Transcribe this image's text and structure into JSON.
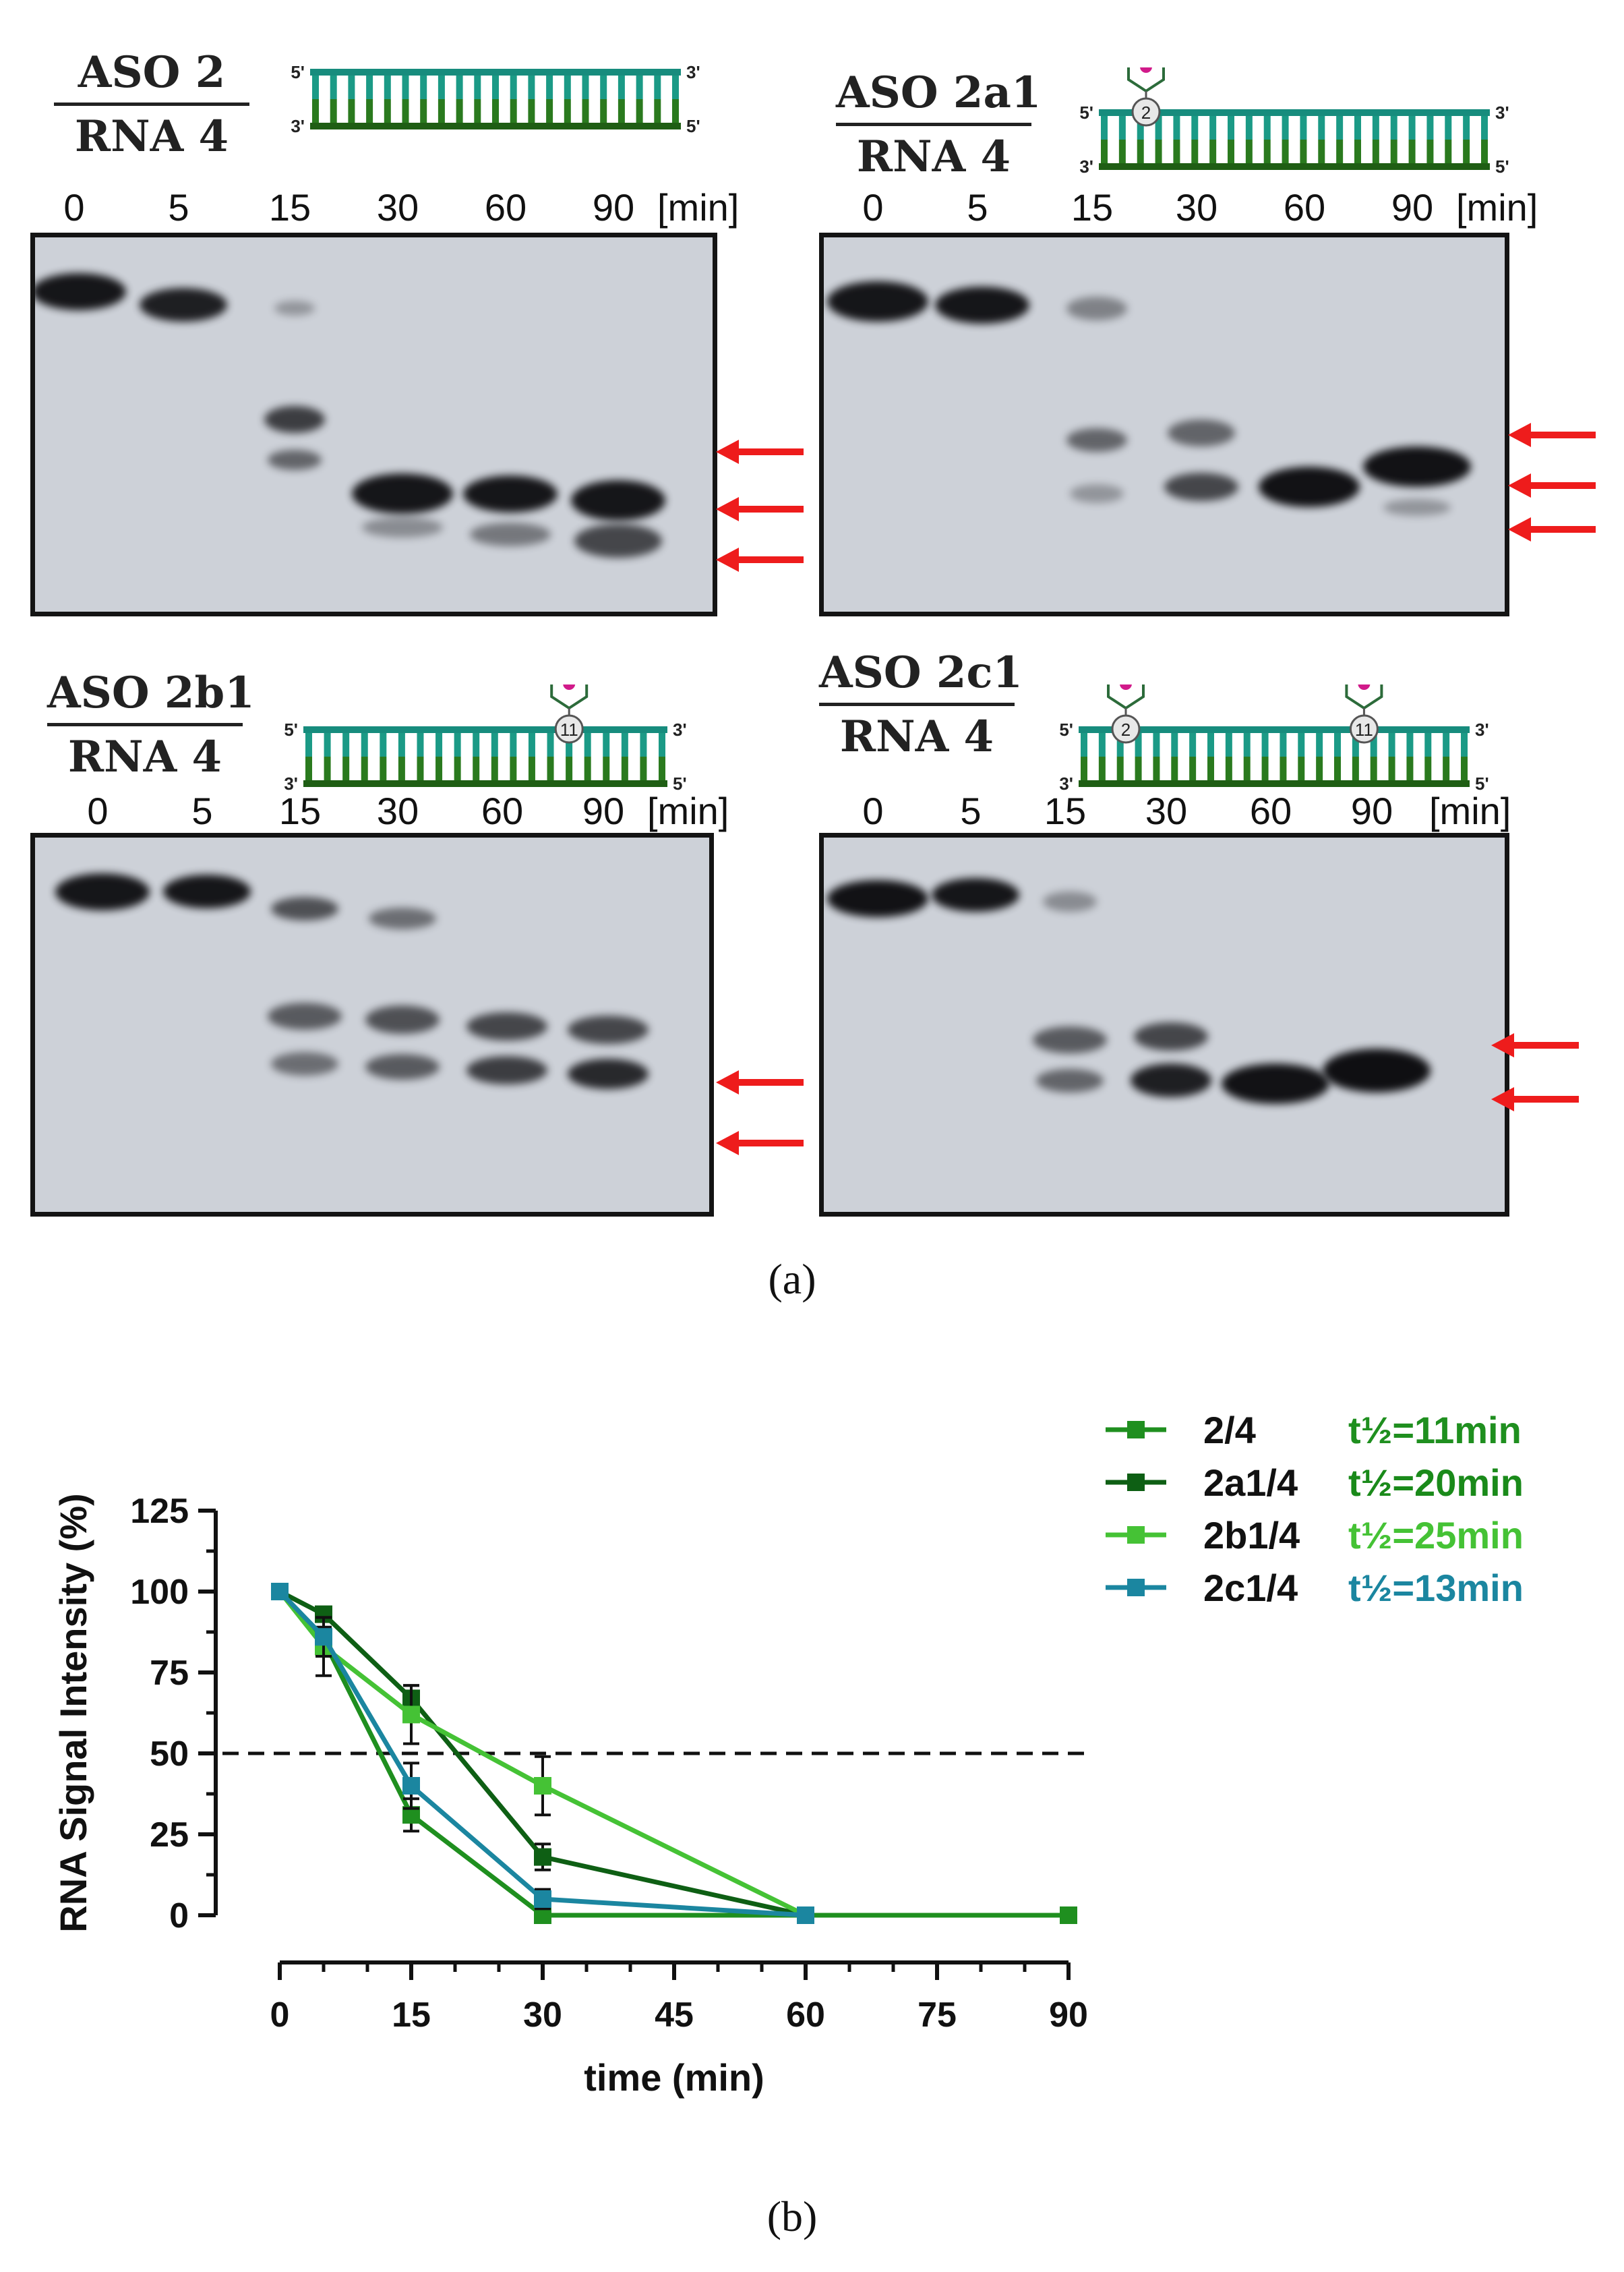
{
  "panel_a": {
    "caption": "(a)",
    "gels": [
      {
        "title_top": "ASO 2",
        "title_bottom": "RNA 4",
        "lanes": [
          "0",
          "5",
          "15",
          "30",
          "60",
          "90"
        ],
        "unit": "[min]",
        "duplex": {
          "top_5": "5'",
          "top_3": "3'",
          "bot_3": "3'",
          "bot_5": "5'",
          "markers": []
        },
        "arrows": 3
      },
      {
        "title_top": "ASO 2a1",
        "title_bottom": "RNA 4",
        "lanes": [
          "0",
          "5",
          "15",
          "30",
          "60",
          "90"
        ],
        "unit": "[min]",
        "duplex": {
          "top_5": "5'",
          "top_3": "3'",
          "bot_3": "3'",
          "bot_5": "5'",
          "markers": [
            "2"
          ]
        },
        "arrows": 3
      },
      {
        "title_top": "ASO 2b1",
        "title_bottom": "RNA 4",
        "lanes": [
          "0",
          "5",
          "15",
          "30",
          "60",
          "90"
        ],
        "unit": "[min]",
        "duplex": {
          "top_5": "5'",
          "top_3": "3'",
          "bot_3": "3'",
          "bot_5": "5'",
          "markers": [
            "11"
          ]
        },
        "arrows": 2
      },
      {
        "title_top": "ASO 2c1",
        "title_bottom": "RNA 4",
        "lanes": [
          "0",
          "5",
          "15",
          "30",
          "60",
          "90"
        ],
        "unit": "[min]",
        "duplex": {
          "top_5": "5'",
          "top_3": "3'",
          "bot_3": "3'",
          "bot_5": "5'",
          "markers": [
            "2",
            "11"
          ]
        },
        "arrows": 2
      }
    ]
  },
  "panel_b": {
    "caption": "(b)"
  },
  "chart_data": {
    "type": "line",
    "xlabel": "time (min)",
    "ylabel": "RNA Signal Intensity (%)",
    "xlim": [
      0,
      90
    ],
    "ylim": [
      0,
      125
    ],
    "xticks": [
      "0",
      "15",
      "30",
      "45",
      "60",
      "75",
      "90"
    ],
    "yticks": [
      "0",
      "25",
      "50",
      "75",
      "100",
      "125"
    ],
    "reference_line": {
      "y": 50,
      "style": "dashed"
    },
    "legend_position": "right",
    "series": [
      {
        "name": "2/4",
        "halflife": "t½=11min",
        "color": "#1f8f1f",
        "label_color": "#1f8f1f",
        "x": [
          0,
          5,
          15,
          30,
          60,
          90
        ],
        "y": [
          100,
          85,
          31,
          0,
          0,
          0
        ],
        "err": [
          0,
          4,
          5,
          0,
          0,
          0
        ]
      },
      {
        "name": "2a1/4",
        "halflife": "t½=20min",
        "color": "#0e5f14",
        "label_color": "#1a8a1a",
        "x": [
          0,
          5,
          15,
          30,
          60
        ],
        "y": [
          100,
          93,
          67,
          18,
          0
        ],
        "err": [
          0,
          2,
          4,
          4,
          0
        ]
      },
      {
        "name": "2b1/4",
        "halflife": "t½=25min",
        "color": "#45c235",
        "label_color": "#45c235",
        "x": [
          0,
          5,
          15,
          30,
          60
        ],
        "y": [
          100,
          83,
          62,
          40,
          0
        ],
        "err": [
          0,
          9,
          9,
          9,
          0
        ]
      },
      {
        "name": "2c1/4",
        "halflife": "t½=13min",
        "color": "#1b86a0",
        "label_color": "#1b86a0",
        "x": [
          0,
          5,
          15,
          30,
          60
        ],
        "y": [
          100,
          86,
          40,
          5,
          0
        ],
        "err": [
          0,
          6,
          7,
          3,
          0
        ]
      }
    ]
  }
}
